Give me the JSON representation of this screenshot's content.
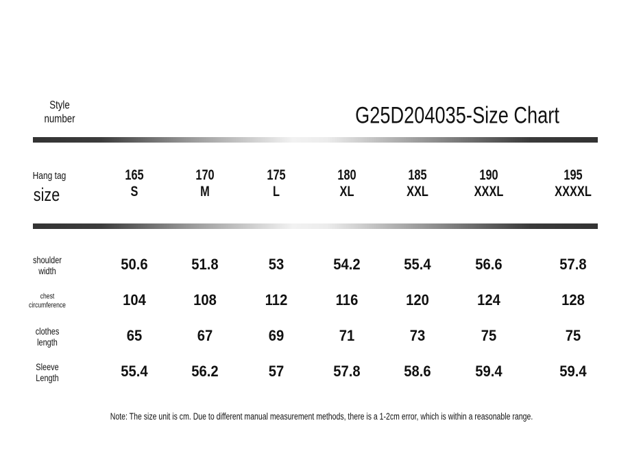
{
  "header": {
    "style_label_line1": "Style",
    "style_label_line2": "number",
    "title": "G25D204035-Size Chart",
    "size_label_line1": "Hang tag",
    "size_label_line2": "size"
  },
  "sizes": [
    {
      "height": "165",
      "size": "S"
    },
    {
      "height": "170",
      "size": "M"
    },
    {
      "height": "175",
      "size": "L"
    },
    {
      "height": "180",
      "size": "XL"
    },
    {
      "height": "185",
      "size": "XXL"
    },
    {
      "height": "190",
      "size": "XXXL"
    },
    {
      "height": "195",
      "size": "XXXXL"
    }
  ],
  "rows": [
    {
      "label1": "shoulder",
      "label2": "width",
      "values": [
        "50.6",
        "51.8",
        "53",
        "54.2",
        "55.4",
        "56.6",
        "57.8"
      ]
    },
    {
      "label1": "chest",
      "label2": "circumference",
      "values": [
        "104",
        "108",
        "112",
        "116",
        "120",
        "124",
        "128"
      ]
    },
    {
      "label1": "clothes",
      "label2": "length",
      "values": [
        "65",
        "67",
        "69",
        "71",
        "73",
        "75",
        "75"
      ]
    },
    {
      "label1": "Sleeve",
      "label2": "Length",
      "values": [
        "55.4",
        "56.2",
        "57",
        "57.8",
        "58.6",
        "59.4",
        "59.4"
      ]
    }
  ],
  "note": "Note: The size unit is cm. Due to different manual measurement methods, there is a 1-2cm error, which is within a reasonable range.",
  "colors": {
    "text": "#111111",
    "bar_dark": "#333333",
    "bar_light": "#f2f2f2"
  }
}
